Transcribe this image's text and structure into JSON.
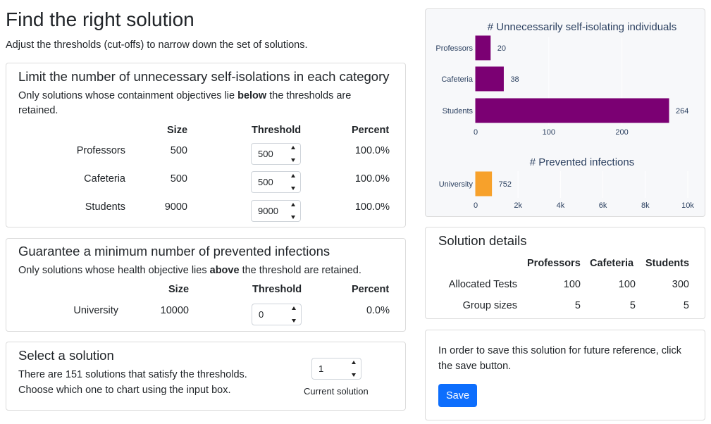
{
  "page": {
    "title": "Find the right solution",
    "subtitle": "Adjust the thresholds (cut-offs) to narrow down the set of solutions."
  },
  "limit_card": {
    "title": "Limit the number of unnecessary self-isolations in each category",
    "desc_before": "Only solutions whose containment objectives lie ",
    "desc_bold": "below",
    "desc_after": " the thresholds are",
    "desc_line2": "retained.",
    "headers": {
      "size": "Size",
      "threshold": "Threshold",
      "percent": "Percent"
    },
    "rows": [
      {
        "label": "Professors",
        "size": "500",
        "threshold": "500",
        "percent": "100.0%"
      },
      {
        "label": "Cafeteria",
        "size": "500",
        "threshold": "500",
        "percent": "100.0%"
      },
      {
        "label": "Students",
        "size": "9000",
        "threshold": "9000",
        "percent": "100.0%"
      }
    ]
  },
  "guarantee_card": {
    "title": "Guarantee a minimum number of prevented infections",
    "desc_before": "Only solutions whose health objective lies ",
    "desc_bold": "above",
    "desc_after": " the threshold are retained.",
    "headers": {
      "size": "Size",
      "threshold": "Threshold",
      "percent": "Percent"
    },
    "rows": [
      {
        "label": "University",
        "size": "10000",
        "threshold": "0",
        "percent": "0.0%"
      }
    ]
  },
  "select_card": {
    "title": "Select a solution",
    "line1": "There are 151 solutions that satisfy the thresholds.",
    "line2": "Choose which one to chart using the input box.",
    "input_value": "1",
    "input_label": "Current solution"
  },
  "chart_data": [
    {
      "type": "bar",
      "orientation": "horizontal",
      "title": "# Unnecessarily self-isolating individuals",
      "categories": [
        "Professors",
        "Cafeteria",
        "Students"
      ],
      "values": [
        20,
        38,
        264
      ],
      "value_labels": [
        "20",
        "38",
        "264"
      ],
      "xlim": [
        0,
        290
      ],
      "xticks": [
        0,
        100,
        200
      ],
      "xtick_labels": [
        "0",
        "100",
        "200"
      ],
      "color": "#7b0073"
    },
    {
      "type": "bar",
      "orientation": "horizontal",
      "title": "# Prevented infections",
      "categories": [
        "University"
      ],
      "values": [
        752
      ],
      "value_labels": [
        "752"
      ],
      "xlim": [
        0,
        10000
      ],
      "xticks": [
        0,
        2000,
        4000,
        6000,
        8000,
        10000
      ],
      "xtick_labels": [
        "0",
        "2k",
        "4k",
        "6k",
        "8k",
        "10k"
      ],
      "color": "#f7a12b"
    }
  ],
  "details_card": {
    "title": "Solution details",
    "headers": [
      "Professors",
      "Cafeteria",
      "Students"
    ],
    "rows": [
      {
        "label": "Allocated Tests",
        "values": [
          "100",
          "100",
          "300"
        ]
      },
      {
        "label": "Group sizes",
        "values": [
          "5",
          "5",
          "5"
        ]
      }
    ]
  },
  "save_card": {
    "line1": "In order to save this solution for future reference, click",
    "line2": "the save button.",
    "button_label": "Save"
  }
}
